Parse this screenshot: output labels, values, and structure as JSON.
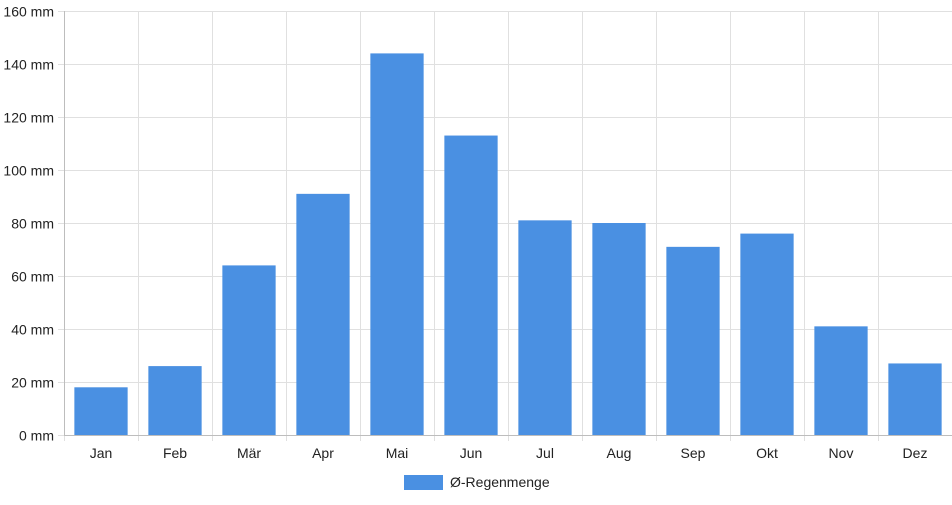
{
  "chart_data": {
    "type": "bar",
    "categories": [
      "Jan",
      "Feb",
      "Mär",
      "Apr",
      "Mai",
      "Jun",
      "Jul",
      "Aug",
      "Sep",
      "Okt",
      "Nov",
      "Dez"
    ],
    "series": [
      {
        "name": "Ø-Regenmenge",
        "values": [
          18,
          26,
          64,
          91,
          144,
          113,
          81,
          80,
          71,
          76,
          41,
          27
        ]
      }
    ],
    "ylim": [
      0,
      160
    ],
    "yticks": [
      0,
      20,
      40,
      60,
      80,
      100,
      120,
      140,
      160
    ],
    "y_unit": "mm",
    "y_tick_labels": [
      "0 mm",
      "20 mm",
      "40 mm",
      "60 mm",
      "80 mm",
      "100 mm",
      "120 mm",
      "140 mm",
      "160 mm"
    ],
    "grid": true,
    "legend_position": "bottom",
    "bar_color": "#4a90e2",
    "grid_color": "#e0e0e0"
  }
}
